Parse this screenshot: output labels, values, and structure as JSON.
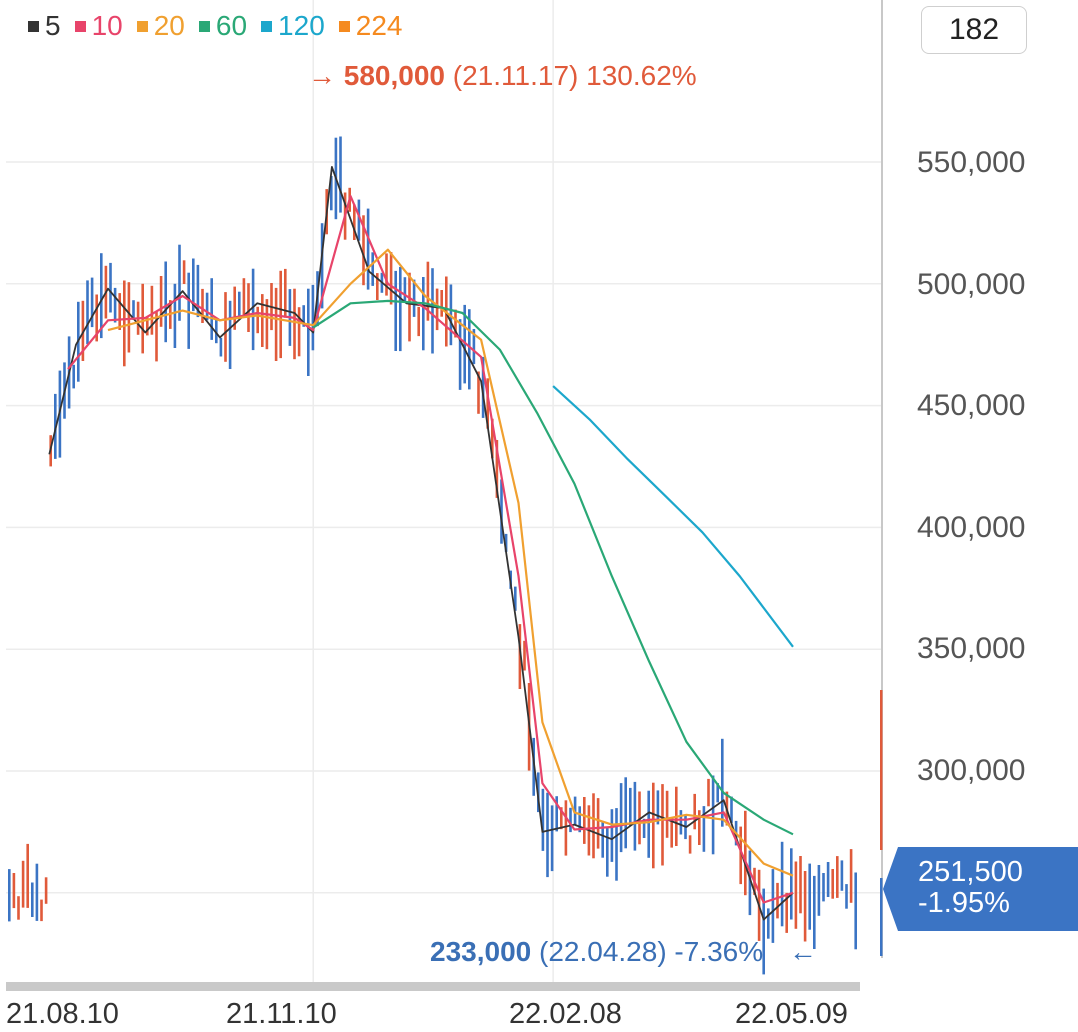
{
  "legend": [
    {
      "label": "5",
      "color": "#333333"
    },
    {
      "label": "10",
      "color": "#e8446a"
    },
    {
      "label": "20",
      "color": "#f0a030"
    },
    {
      "label": "60",
      "color": "#2aa876"
    },
    {
      "label": "120",
      "color": "#1ca7cc"
    },
    {
      "label": "224",
      "color": "#f58a1f"
    }
  ],
  "count_box": "182",
  "high": {
    "arrow": "→",
    "value": "580,000",
    "detail": "(21.11.17) 130.62%"
  },
  "low": {
    "value": "233,000",
    "detail": "(22.04.28) -7.36%",
    "arrow": "←"
  },
  "current": {
    "price": "251,500",
    "change": "-1.95%"
  },
  "chart_data": {
    "type": "line",
    "x_ticks": [
      "21.08.10",
      "21.11.10",
      "22.02.08",
      "22.05.09"
    ],
    "y_ticks": [
      "550,000",
      "500,000",
      "450,000",
      "400,000",
      "350,000",
      "300,000"
    ],
    "ylim": [
      227000,
      590000
    ],
    "grid": true,
    "legend_position": "top-left",
    "candle_up_color": "#e05a3a",
    "candle_down_color": "#3b74c4",
    "series": [
      {
        "name": "5",
        "color": "#333333",
        "values": [
          {
            "x": "21.08.03",
            "y": 430000
          },
          {
            "x": "21.08.13",
            "y": 475000
          },
          {
            "x": "21.08.25",
            "y": 498000
          },
          {
            "x": "21.09.08",
            "y": 480000
          },
          {
            "x": "21.09.22",
            "y": 497000
          },
          {
            "x": "21.10.06",
            "y": 478000
          },
          {
            "x": "21.10.20",
            "y": 492000
          },
          {
            "x": "21.11.03",
            "y": 488000
          },
          {
            "x": "21.11.10",
            "y": 480000
          },
          {
            "x": "21.11.17",
            "y": 548000
          },
          {
            "x": "21.12.01",
            "y": 505000
          },
          {
            "x": "21.12.15",
            "y": 492000
          },
          {
            "x": "21.12.29",
            "y": 490000
          },
          {
            "x": "22.01.12",
            "y": 460000
          },
          {
            "x": "22.01.26",
            "y": 355000
          },
          {
            "x": "22.02.04",
            "y": 275000
          },
          {
            "x": "22.02.16",
            "y": 278000
          },
          {
            "x": "22.03.02",
            "y": 272000
          },
          {
            "x": "22.03.16",
            "y": 283000
          },
          {
            "x": "22.03.30",
            "y": 277000
          },
          {
            "x": "22.04.13",
            "y": 288000
          },
          {
            "x": "22.04.28",
            "y": 239000
          },
          {
            "x": "22.05.09",
            "y": 250000
          }
        ]
      },
      {
        "name": "10",
        "color": "#e8446a",
        "values": [
          {
            "x": "21.08.10",
            "y": 465000
          },
          {
            "x": "21.08.25",
            "y": 485000
          },
          {
            "x": "21.09.08",
            "y": 486000
          },
          {
            "x": "21.09.22",
            "y": 495000
          },
          {
            "x": "21.10.06",
            "y": 485000
          },
          {
            "x": "21.10.20",
            "y": 488000
          },
          {
            "x": "21.11.03",
            "y": 486000
          },
          {
            "x": "21.11.10",
            "y": 481000
          },
          {
            "x": "21.11.24",
            "y": 536000
          },
          {
            "x": "21.12.08",
            "y": 500000
          },
          {
            "x": "21.12.22",
            "y": 490000
          },
          {
            "x": "22.01.12",
            "y": 470000
          },
          {
            "x": "22.01.26",
            "y": 380000
          },
          {
            "x": "22.02.04",
            "y": 295000
          },
          {
            "x": "22.02.16",
            "y": 276000
          },
          {
            "x": "22.03.02",
            "y": 277000
          },
          {
            "x": "22.03.16",
            "y": 280000
          },
          {
            "x": "22.03.30",
            "y": 280000
          },
          {
            "x": "22.04.13",
            "y": 283000
          },
          {
            "x": "22.04.28",
            "y": 246000
          },
          {
            "x": "22.05.09",
            "y": 250000
          }
        ]
      },
      {
        "name": "20",
        "color": "#f0a030",
        "values": [
          {
            "x": "21.08.25",
            "y": 481000
          },
          {
            "x": "21.09.08",
            "y": 485000
          },
          {
            "x": "21.09.22",
            "y": 489000
          },
          {
            "x": "21.10.06",
            "y": 485000
          },
          {
            "x": "21.10.20",
            "y": 487000
          },
          {
            "x": "21.11.10",
            "y": 483000
          },
          {
            "x": "21.11.24",
            "y": 500000
          },
          {
            "x": "21.12.08",
            "y": 514000
          },
          {
            "x": "21.12.22",
            "y": 495000
          },
          {
            "x": "22.01.12",
            "y": 477000
          },
          {
            "x": "22.01.26",
            "y": 410000
          },
          {
            "x": "22.02.04",
            "y": 320000
          },
          {
            "x": "22.02.16",
            "y": 283000
          },
          {
            "x": "22.03.02",
            "y": 278000
          },
          {
            "x": "22.03.16",
            "y": 279000
          },
          {
            "x": "22.03.30",
            "y": 282000
          },
          {
            "x": "22.04.13",
            "y": 280000
          },
          {
            "x": "22.04.28",
            "y": 262000
          },
          {
            "x": "22.05.09",
            "y": 257000
          }
        ]
      },
      {
        "name": "60",
        "color": "#2aa876",
        "values": [
          {
            "x": "21.11.10",
            "y": 482000
          },
          {
            "x": "21.11.24",
            "y": 492000
          },
          {
            "x": "21.12.08",
            "y": 493000
          },
          {
            "x": "21.12.22",
            "y": 492000
          },
          {
            "x": "22.01.05",
            "y": 488000
          },
          {
            "x": "22.01.19",
            "y": 473000
          },
          {
            "x": "22.02.02",
            "y": 447000
          },
          {
            "x": "22.02.16",
            "y": 418000
          },
          {
            "x": "22.03.02",
            "y": 380000
          },
          {
            "x": "22.03.16",
            "y": 345000
          },
          {
            "x": "22.03.30",
            "y": 312000
          },
          {
            "x": "22.04.13",
            "y": 291000
          },
          {
            "x": "22.04.28",
            "y": 280000
          },
          {
            "x": "22.05.09",
            "y": 274000
          }
        ]
      },
      {
        "name": "120",
        "color": "#1ca7cc",
        "values": [
          {
            "x": "22.02.08",
            "y": 458000
          },
          {
            "x": "22.02.22",
            "y": 444000
          },
          {
            "x": "22.03.08",
            "y": 428000
          },
          {
            "x": "22.03.22",
            "y": 413000
          },
          {
            "x": "22.04.05",
            "y": 398000
          },
          {
            "x": "22.04.19",
            "y": 380000
          },
          {
            "x": "22.05.09",
            "y": 351000
          }
        ]
      }
    ]
  }
}
